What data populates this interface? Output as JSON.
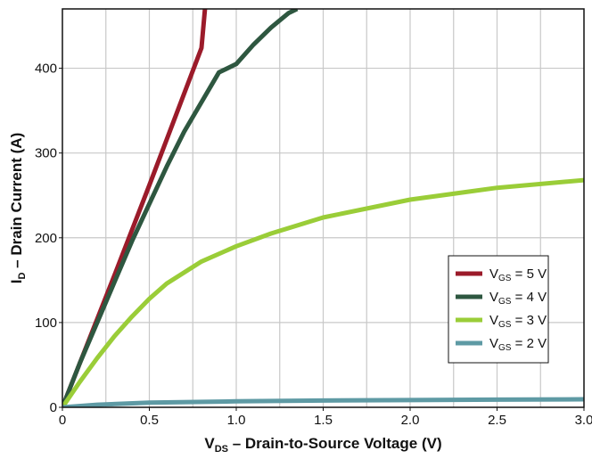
{
  "chart_data": {
    "type": "line",
    "xlabel": {
      "main": "V",
      "sub": "DS",
      "rest": " – Drain-to-Source Voltage (V)"
    },
    "ylabel": {
      "main": "I",
      "sub": "D",
      "rest": " – Drain Current (A)"
    },
    "xlim": [
      0,
      3.0
    ],
    "ylim": [
      0,
      470
    ],
    "xticks": [
      0,
      0.5,
      1.0,
      1.5,
      2.0,
      2.5,
      3.0
    ],
    "xtick_labels": [
      "0",
      "0.5",
      "1.0",
      "1.5",
      "2.0",
      "2.5",
      "3.0"
    ],
    "yticks": [
      0,
      100,
      200,
      300,
      400
    ],
    "ytick_labels": [
      "0",
      "100",
      "200",
      "300",
      "400"
    ],
    "grid": true,
    "legend_position": "lower-right",
    "series": [
      {
        "name": "V_GS = 5 V",
        "label": {
          "main": "V",
          "sub": "GS",
          "rest": " = 5 V"
        },
        "color": "#9b1b2a",
        "x": [
          0,
          0.1,
          0.2,
          0.3,
          0.4,
          0.5,
          0.6,
          0.7,
          0.8,
          0.82
        ],
        "y": [
          0,
          52,
          104,
          156,
          209,
          262,
          316,
          370,
          424,
          470
        ]
      },
      {
        "name": "V_GS = 4 V",
        "label": {
          "main": "V",
          "sub": "GS",
          "rest": " = 4 V"
        },
        "color": "#2e5740",
        "x": [
          0,
          0.1,
          0.2,
          0.3,
          0.4,
          0.5,
          0.6,
          0.7,
          0.8,
          0.9,
          1.0,
          1.1,
          1.2,
          1.3,
          1.35
        ],
        "y": [
          0,
          52,
          100,
          148,
          196,
          240,
          284,
          325,
          360,
          395,
          405,
          428,
          448,
          465,
          470
        ]
      },
      {
        "name": "V_GS = 3 V",
        "label": {
          "main": "V",
          "sub": "GS",
          "rest": " = 3 V"
        },
        "color": "#9acd38",
        "x": [
          0,
          0.1,
          0.2,
          0.3,
          0.4,
          0.5,
          0.6,
          0.8,
          1.0,
          1.2,
          1.5,
          2.0,
          2.5,
          3.0
        ],
        "y": [
          0,
          30,
          58,
          84,
          107,
          128,
          146,
          172,
          190,
          205,
          224,
          245,
          259,
          268
        ]
      },
      {
        "name": "V_GS = 2 V",
        "label": {
          "main": "V",
          "sub": "GS",
          "rest": " = 2 V"
        },
        "color": "#5e9aa4",
        "x": [
          0,
          0.2,
          0.5,
          1.0,
          1.5,
          2.0,
          2.5,
          3.0
        ],
        "y": [
          0,
          3,
          5.5,
          7,
          8,
          8.5,
          9,
          9.5
        ]
      }
    ]
  }
}
